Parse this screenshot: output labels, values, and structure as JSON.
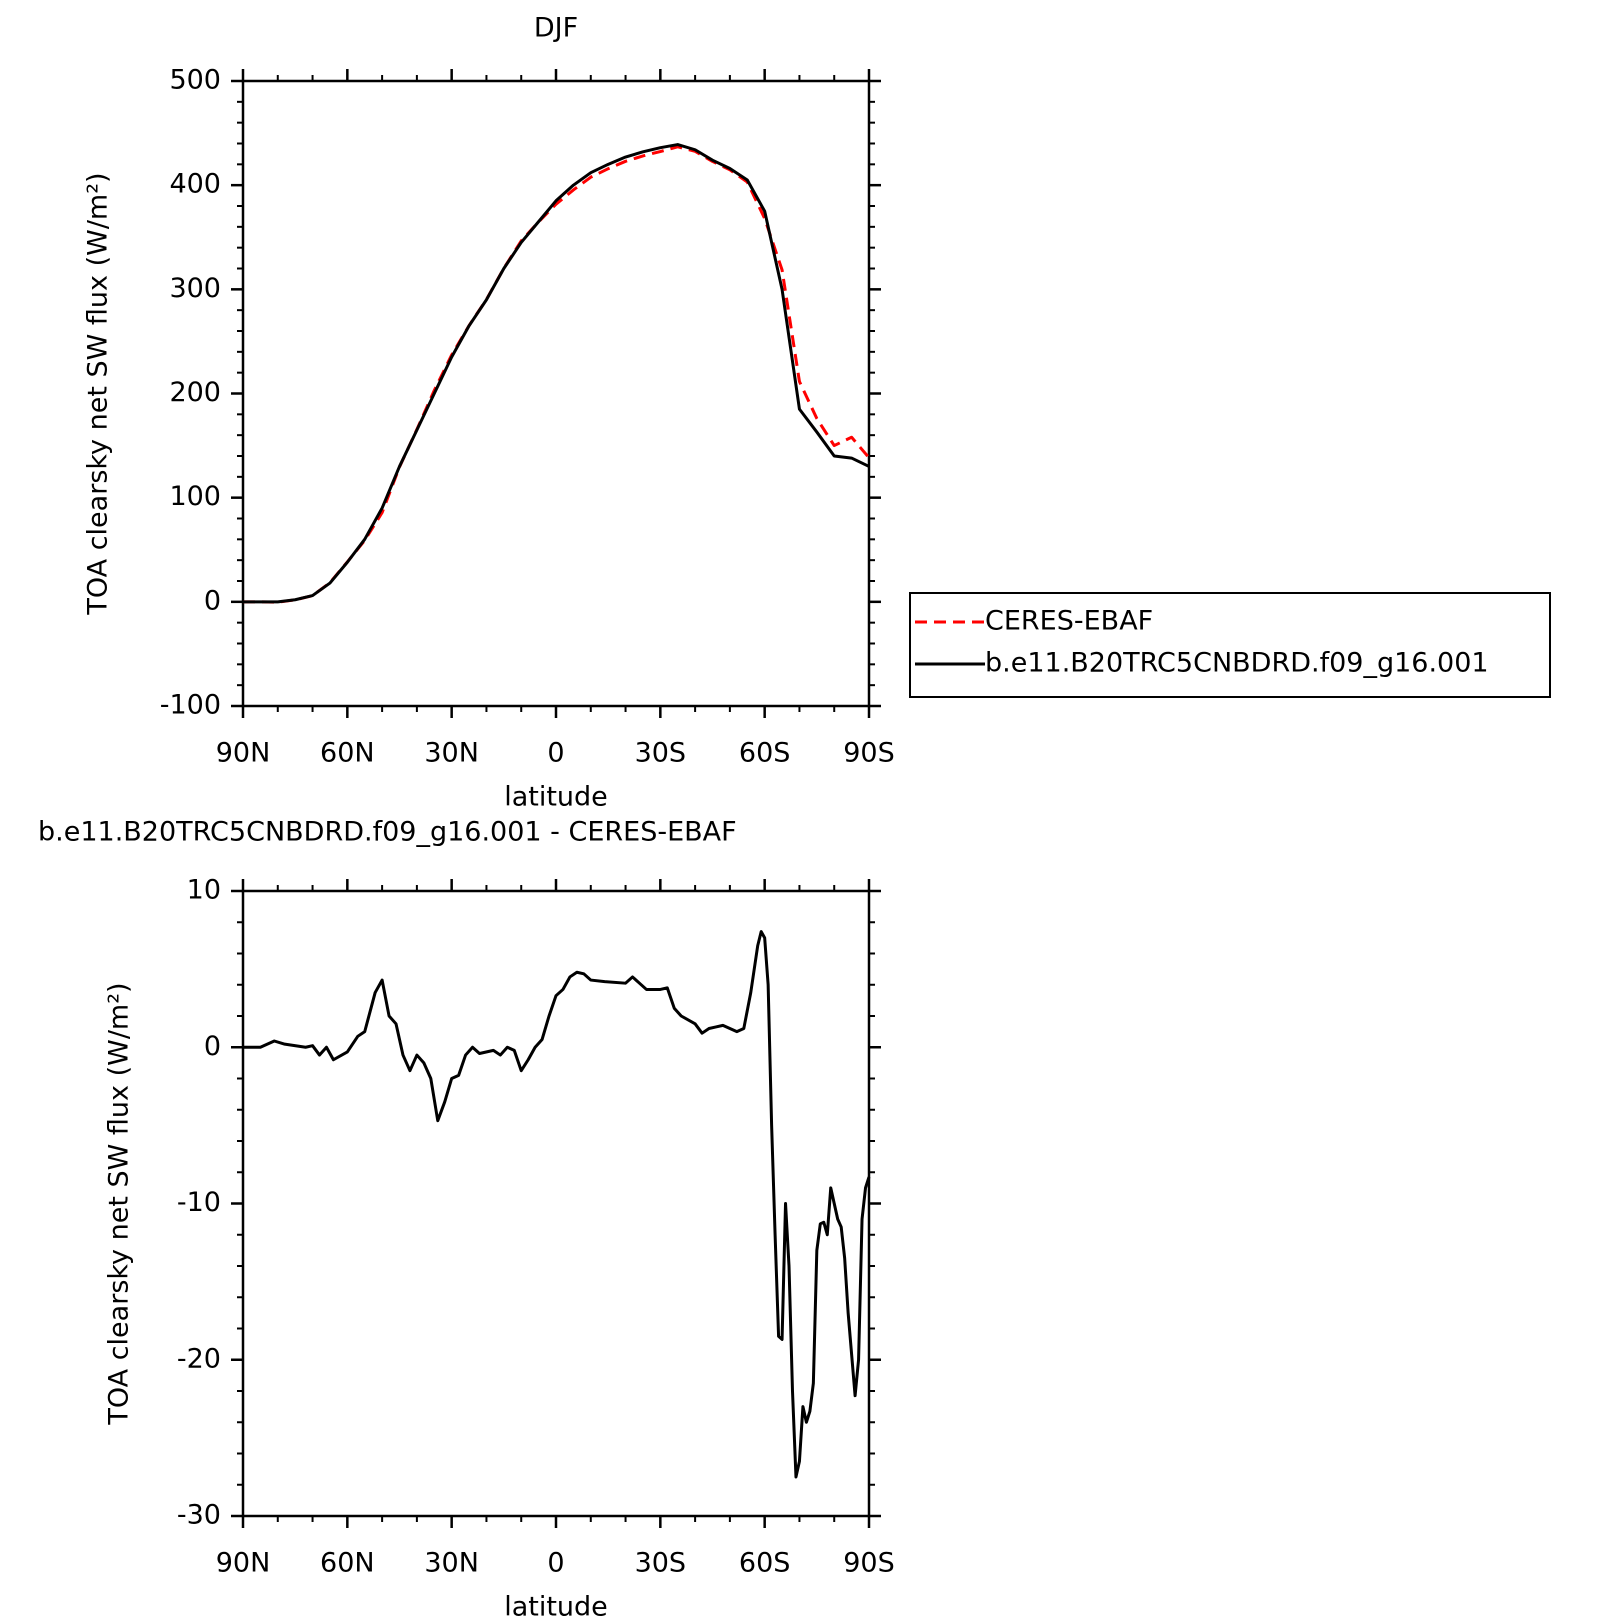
{
  "chart_data": [
    {
      "type": "line",
      "title": "DJF",
      "x_label": "latitude",
      "y_label": "TOA clearsky net SW flux (W/m²)",
      "x": [
        90,
        85,
        80,
        75,
        70,
        65,
        60,
        55,
        50,
        45,
        40,
        35,
        30,
        25,
        20,
        15,
        10,
        5,
        0,
        -5,
        -10,
        -15,
        -20,
        -25,
        -30,
        -35,
        -40,
        -45,
        -50,
        -55,
        -60,
        -65,
        -70,
        -75,
        -80,
        -85,
        -90
      ],
      "xlim": [
        90,
        -90
      ],
      "xticks": [
        {
          "value": 90,
          "label": "90N"
        },
        {
          "value": 60,
          "label": "60N"
        },
        {
          "value": 30,
          "label": "30N"
        },
        0,
        {
          "value": -30,
          "label": "30S"
        },
        {
          "value": -60,
          "label": "60S"
        },
        {
          "value": -90,
          "label": "90S"
        }
      ],
      "ylim": [
        -100,
        500
      ],
      "yticks": [
        -100,
        0,
        100,
        200,
        300,
        400,
        500
      ],
      "legend": "right",
      "series": [
        {
          "name": "CERES-EBAF",
          "color": "#ff0000",
          "linestyle": "dashed",
          "values": [
            0,
            0,
            -0.4,
            1.9,
            5.9,
            18.4,
            38.3,
            59,
            85.7,
            129.5,
            165.5,
            203,
            237,
            265.2,
            290.3,
            320.2,
            346.5,
            364.8,
            381.7,
            395.4,
            407.7,
            415.8,
            422.9,
            428.1,
            432.3,
            436.8,
            432.5,
            422.8,
            414.8,
            403,
            368,
            318.7,
            211.5,
            176,
            150,
            158,
            138.3
          ]
        },
        {
          "name": "b.e11.B20TRC5CNBDRD.f09_g16.001",
          "color": "#000000",
          "linestyle": "solid",
          "values": [
            0,
            0,
            0,
            2,
            6,
            18,
            38,
            60,
            90,
            130,
            165,
            200,
            235,
            265,
            290,
            320,
            345,
            365,
            385,
            400,
            412,
            420,
            427,
            432,
            436,
            439,
            434,
            424,
            416,
            405,
            375,
            300,
            185,
            163,
            140,
            138,
            130
          ]
        }
      ]
    },
    {
      "type": "line",
      "title": "b.e11.B20TRC5CNBDRD.f09_g16.001 - CERES-EBAF",
      "x_label": "latitude",
      "y_label": "TOA clearsky net SW flux (W/m²)",
      "x": [
        90,
        85,
        81,
        78,
        72,
        70,
        68,
        66,
        64,
        60,
        57,
        55,
        52,
        50,
        48,
        46,
        44,
        42,
        40,
        38,
        36,
        34,
        32,
        30,
        28,
        26,
        24,
        22,
        18,
        16,
        14,
        12,
        10,
        8,
        6,
        4,
        2,
        0,
        -2,
        -4,
        -6,
        -8,
        -10,
        -14,
        -20,
        -22,
        -24,
        -26,
        -30,
        -32,
        -34,
        -36,
        -40,
        -42,
        -44,
        -46,
        -48,
        -50,
        -52,
        -54,
        -56,
        -58,
        -59,
        -60,
        -61,
        -62,
        -63,
        -64,
        -65,
        -66,
        -67,
        -68,
        -69,
        -70,
        -71,
        -72,
        -73,
        -74,
        -75,
        -76,
        -77,
        -78,
        -79,
        -80,
        -81,
        -82,
        -83,
        -84,
        -86,
        -87,
        -88,
        -89,
        -90
      ],
      "xlim": [
        90,
        -90
      ],
      "xticks": [
        {
          "value": 90,
          "label": "90N"
        },
        {
          "value": 60,
          "label": "60N"
        },
        {
          "value": 30,
          "label": "30N"
        },
        0,
        {
          "value": -30,
          "label": "30S"
        },
        {
          "value": -60,
          "label": "60S"
        },
        {
          "value": -90,
          "label": "90S"
        }
      ],
      "ylim": [
        -30,
        10
      ],
      "yticks": [
        -30,
        -20,
        -10,
        0,
        10
      ],
      "series": [
        {
          "color": "#000000",
          "linestyle": "solid",
          "values": [
            0,
            0,
            0.4,
            0.2,
            0,
            0.1,
            -0.5,
            0,
            -0.8,
            -0.3,
            0.7,
            1,
            3.5,
            4.3,
            2,
            1.5,
            -0.5,
            -1.5,
            -0.5,
            -1,
            -2,
            -4.7,
            -3.5,
            -2,
            -1.8,
            -0.5,
            0,
            -0.4,
            -0.2,
            -0.5,
            0,
            -0.2,
            -1.5,
            -0.8,
            0,
            0.5,
            2,
            3.3,
            3.7,
            4.5,
            4.8,
            4.7,
            4.3,
            4.2,
            4.1,
            4.5,
            4.1,
            3.7,
            3.7,
            3.8,
            2.5,
            2,
            1.5,
            0.9,
            1.2,
            1.3,
            1.4,
            1.2,
            1.0,
            1.2,
            3.5,
            6.5,
            7.4,
            7,
            4,
            -5,
            -12,
            -18.5,
            -18.7,
            -10,
            -14,
            -22,
            -27.5,
            -26.5,
            -23,
            -24,
            -23.3,
            -21.5,
            -13,
            -11.3,
            -11.2,
            -12,
            -9,
            -10,
            -11,
            -11.5,
            -13.5,
            -17,
            -22.3,
            -20,
            -11,
            -9,
            -8.3
          ]
        }
      ]
    }
  ]
}
